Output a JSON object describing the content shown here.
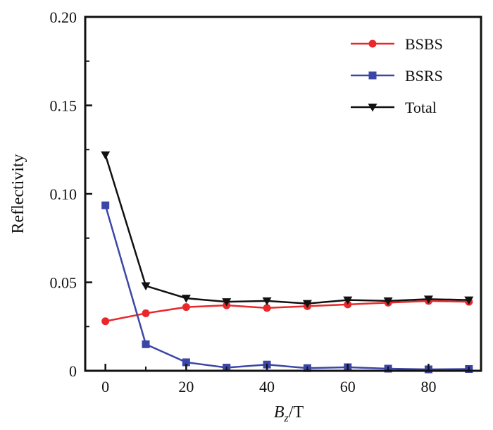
{
  "chart_data": {
    "type": "line",
    "xlabel_main": "B",
    "xlabel_sub": "z",
    "xlabel_unit": "/T",
    "ylabel": "Reflectivity",
    "xlim": [
      -5,
      93
    ],
    "ylim": [
      0,
      0.2
    ],
    "x_ticks": [
      0,
      20,
      40,
      60,
      80
    ],
    "y_ticks": [
      0,
      0.05,
      0.1,
      0.15,
      0.2
    ],
    "x_tick_labels": [
      "0",
      "20",
      "40",
      "60",
      "80"
    ],
    "y_tick_labels": [
      "0",
      "0.05",
      "0.10",
      "0.15",
      "0.20"
    ],
    "x": [
      0,
      10,
      20,
      30,
      40,
      50,
      60,
      70,
      80,
      90
    ],
    "grid": false,
    "legend_position": "top-right",
    "series": [
      {
        "name": "BSBS",
        "color": "#e8282b",
        "marker": "circle",
        "values": [
          0.028,
          0.0325,
          0.036,
          0.037,
          0.0355,
          0.0365,
          0.0375,
          0.0385,
          0.0395,
          0.039
        ]
      },
      {
        "name": "BSRS",
        "color": "#3c46a6",
        "marker": "square",
        "values": [
          0.0935,
          0.015,
          0.0048,
          0.0018,
          0.0035,
          0.0015,
          0.002,
          0.0012,
          0.0008,
          0.001
        ]
      },
      {
        "name": "Total",
        "color": "#111111",
        "marker": "triangle-down",
        "values": [
          0.122,
          0.048,
          0.041,
          0.039,
          0.0395,
          0.038,
          0.04,
          0.0395,
          0.0405,
          0.04
        ]
      }
    ]
  }
}
